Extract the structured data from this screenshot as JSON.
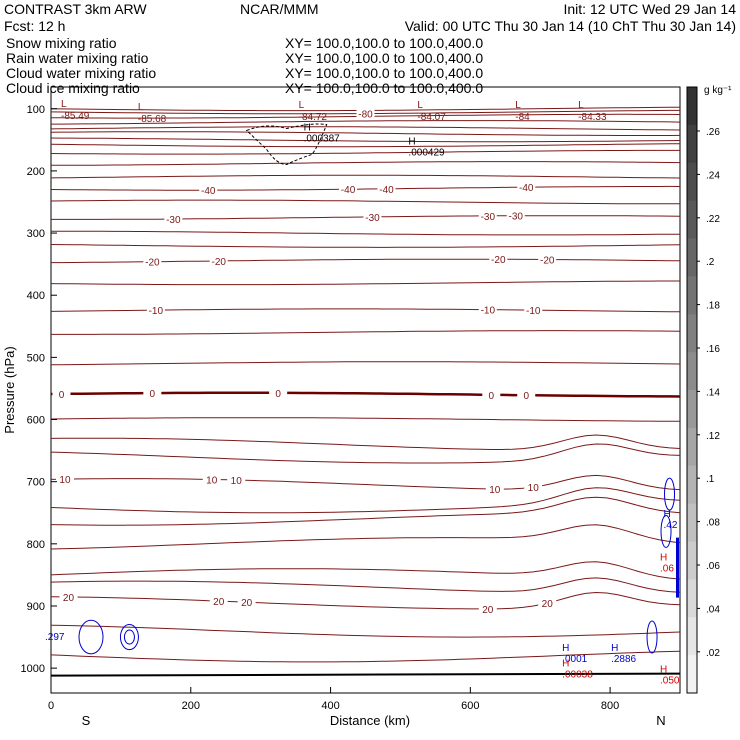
{
  "header": {
    "left1": "CONTRAST   3km ARW",
    "center1": "NCAR/MMM",
    "right1": "Init: 12 UTC Wed 29 Jan 14",
    "left2": "Fcst:    12 h",
    "right2": "Valid: 00 UTC Thu 30 Jan 14 (10 ChT Thu 30 Jan 14)",
    "fields": [
      {
        "name": "Snow mixing ratio",
        "xy": "XY=  100.0,100.0 to 100.0,400.0",
        "color": "#000000"
      },
      {
        "name": "Rain water mixing ratio",
        "xy": "XY=  100.0,100.0 to 100.0,400.0",
        "color": "#d40000"
      },
      {
        "name": "Cloud water mixing ratio",
        "xy": "XY=  100.0,100.0 to 100.0,400.0",
        "color": "#0000d0"
      },
      {
        "name": "Cloud ice mixing ratio",
        "xy": "XY=  100.0,100.0 to 100.0,400.0",
        "color": "#000000"
      }
    ]
  },
  "chart_data": {
    "type": "contour-cross-section",
    "xlabel": "Distance (km)",
    "ylabel": "Pressure (hPa)",
    "xlim": [
      0,
      900
    ],
    "ylim": [
      1040,
      65
    ],
    "x_ticks": [
      0,
      200,
      400,
      600,
      800
    ],
    "y_ticks": [
      100,
      200,
      300,
      400,
      500,
      600,
      700,
      800,
      900,
      1000
    ],
    "end_labels": {
      "left": "S",
      "right": "N"
    },
    "temperature_contours": [
      {
        "label": "-80",
        "p": 105,
        "labels_at": [
          450
        ]
      },
      {
        "label": "-40",
        "p": 228,
        "labels_at": [
          225,
          425,
          480,
          680
        ]
      },
      {
        "label": "-30",
        "p": 275,
        "labels_at": [
          175,
          460,
          625,
          665
        ]
      },
      {
        "label": "-20",
        "p": 345,
        "labels_at": [
          145,
          240,
          640,
          710
        ]
      },
      {
        "label": "-10",
        "p": 425,
        "labels_at": [
          150,
          625,
          690
        ]
      },
      {
        "label": "0",
        "p": 560,
        "labels_at": [
          15,
          145,
          325,
          630,
          680
        ]
      },
      {
        "label": "10",
        "p": 705,
        "labels_at": [
          20,
          230,
          265,
          635,
          690
        ]
      },
      {
        "label": "20",
        "p": 895,
        "labels_at": [
          25,
          240,
          280,
          625,
          710
        ]
      }
    ],
    "lows": [
      {
        "label": "L",
        "value": "-85.49",
        "x": 0,
        "p": 110
      },
      {
        "label": "L",
        "value": "-85.68",
        "x": 110,
        "p": 115
      },
      {
        "label": "L",
        "value": "-84.72",
        "x": 340,
        "p": 112
      },
      {
        "label": "L",
        "value": "-84.07",
        "x": 510,
        "p": 112
      },
      {
        "label": "L",
        "value": "-84",
        "x": 650,
        "p": 112
      },
      {
        "label": "L",
        "value": "-84.33",
        "x": 740,
        "p": 112
      }
    ],
    "highs": [
      {
        "label": "H",
        "value": ".000387",
        "x": 370,
        "p": 148,
        "color": "#000000"
      },
      {
        "label": "H",
        "value": ".000429",
        "x": 520,
        "p": 170,
        "color": "#000000"
      },
      {
        "label": "H",
        "value": ".42",
        "x": 885,
        "p": 770,
        "color": "#0000d0"
      },
      {
        "label": "H",
        "value": ".06",
        "x": 880,
        "p": 840,
        "color": "#d40000"
      },
      {
        "label": "H",
        "value": ".0001",
        "x": 740,
        "p": 985,
        "color": "#0000d0"
      },
      {
        "label": "H",
        "value": ".00038",
        "x": 740,
        "p": 1010,
        "color": "#d40000"
      },
      {
        "label": "H",
        "value": ".2886",
        "x": 810,
        "p": 985,
        "color": "#0000d0"
      },
      {
        "label": "H",
        "value": ".050",
        "x": 880,
        "p": 1020,
        "color": "#d40000"
      },
      {
        "label": "",
        "value": ".297",
        "x": 0,
        "p": 950,
        "color": "#0000d0"
      }
    ],
    "colorbar": {
      "unit": "g kg⁻¹",
      "ticks": [
        ".26",
        ".24",
        ".22",
        ".2",
        ".18",
        ".16",
        ".14",
        ".12",
        ".1",
        ".08",
        ".06",
        ".04",
        ".02"
      ],
      "grays": [
        "#333333",
        "#404040",
        "#4c4c4c",
        "#595959",
        "#666666",
        "#737373",
        "#808080",
        "#8c8c8c",
        "#999999",
        "#a6a6a6",
        "#b3b3b3",
        "#c0c0c0",
        "#cccccc",
        "#d9d9d9",
        "#e6e6e6",
        "#f2f2f2"
      ]
    }
  }
}
